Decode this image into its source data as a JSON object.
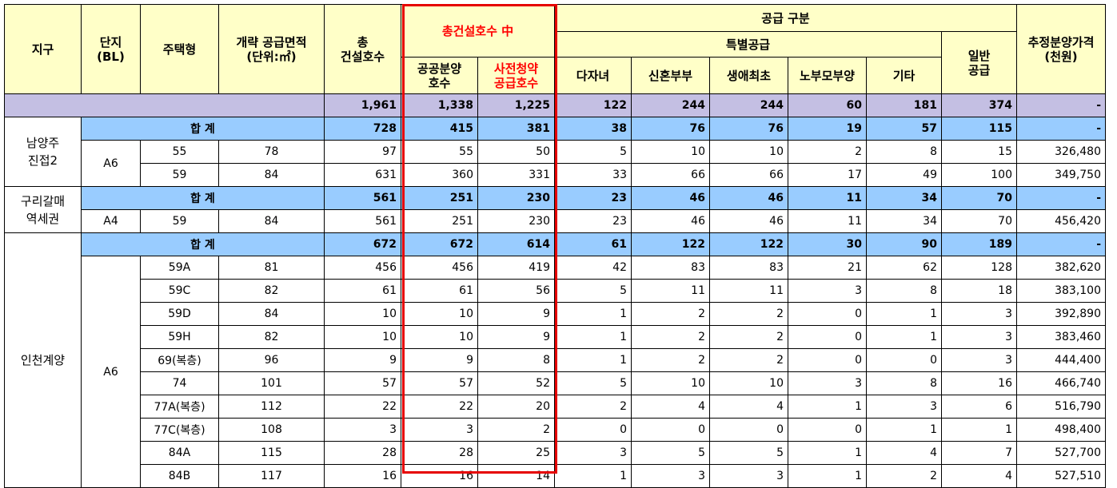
{
  "headers": {
    "district": "지구",
    "block_line1": "단지",
    "block_line2": "(BL)",
    "housing_type": "주택형",
    "area_line1": "개략 공급면적",
    "area_line2": "(단위:㎡)",
    "total_line1": "총",
    "total_line2": "건설호수",
    "among_total": "총건설호수 中",
    "public_sale_line1": "공공분양",
    "public_sale_line2": "호수",
    "pre_sub_line1": "사전청약",
    "pre_sub_line2": "공급호수",
    "supply_division": "공급 구분",
    "special_supply": "특별공급",
    "multi_child": "다자녀",
    "newlywed": "신혼부부",
    "first_home": "생애최초",
    "elderly_parents": "노부모부양",
    "other": "기타",
    "general_line1": "일반",
    "general_line2": "공급",
    "price_line1": "추정분양가격",
    "price_line2": "(천원)"
  },
  "grand_total": {
    "total": "1,961",
    "public": "1,338",
    "presub": "1,225",
    "multi": "122",
    "newlywed": "244",
    "first": "244",
    "elderly": "60",
    "other": "181",
    "general": "374",
    "price": "-"
  },
  "sum_label": "합 계",
  "districts": [
    {
      "name_line1": "남양주",
      "name_line2": "진접2",
      "block": "A6",
      "subtotal": {
        "total": "728",
        "public": "415",
        "presub": "381",
        "multi": "38",
        "newlywed": "76",
        "first": "76",
        "elderly": "19",
        "other": "57",
        "general": "115",
        "price": "-"
      },
      "rows": [
        {
          "type": "55",
          "area": "78",
          "total": "97",
          "public": "55",
          "presub": "50",
          "multi": "5",
          "newlywed": "10",
          "first": "10",
          "elderly": "2",
          "other": "8",
          "general": "15",
          "price": "326,480"
        },
        {
          "type": "59",
          "area": "84",
          "total": "631",
          "public": "360",
          "presub": "331",
          "multi": "33",
          "newlywed": "66",
          "first": "66",
          "elderly": "17",
          "other": "49",
          "general": "100",
          "price": "349,750"
        }
      ]
    },
    {
      "name_line1": "구리갈매",
      "name_line2": "역세권",
      "block": "A4",
      "subtotal": {
        "total": "561",
        "public": "251",
        "presub": "230",
        "multi": "23",
        "newlywed": "46",
        "first": "46",
        "elderly": "11",
        "other": "34",
        "general": "70",
        "price": "-"
      },
      "rows": [
        {
          "type": "59",
          "area": "84",
          "total": "561",
          "public": "251",
          "presub": "230",
          "multi": "23",
          "newlywed": "46",
          "first": "46",
          "elderly": "11",
          "other": "34",
          "general": "70",
          "price": "456,420"
        }
      ]
    },
    {
      "name_line1": "인천계양",
      "name_line2": "",
      "block": "A6",
      "subtotal": {
        "total": "672",
        "public": "672",
        "presub": "614",
        "multi": "61",
        "newlywed": "122",
        "first": "122",
        "elderly": "30",
        "other": "90",
        "general": "189",
        "price": "-"
      },
      "rows": [
        {
          "type": "59A",
          "area": "81",
          "total": "456",
          "public": "456",
          "presub": "419",
          "multi": "42",
          "newlywed": "83",
          "first": "83",
          "elderly": "21",
          "other": "62",
          "general": "128",
          "price": "382,620"
        },
        {
          "type": "59C",
          "area": "82",
          "total": "61",
          "public": "61",
          "presub": "56",
          "multi": "5",
          "newlywed": "11",
          "first": "11",
          "elderly": "3",
          "other": "8",
          "general": "18",
          "price": "383,100"
        },
        {
          "type": "59D",
          "area": "84",
          "total": "10",
          "public": "10",
          "presub": "9",
          "multi": "1",
          "newlywed": "2",
          "first": "2",
          "elderly": "0",
          "other": "1",
          "general": "3",
          "price": "392,890"
        },
        {
          "type": "59H",
          "area": "82",
          "total": "10",
          "public": "10",
          "presub": "9",
          "multi": "1",
          "newlywed": "2",
          "first": "2",
          "elderly": "0",
          "other": "1",
          "general": "3",
          "price": "383,460"
        },
        {
          "type": "69(복층)",
          "area": "96",
          "total": "9",
          "public": "9",
          "presub": "8",
          "multi": "1",
          "newlywed": "2",
          "first": "2",
          "elderly": "0",
          "other": "0",
          "general": "3",
          "price": "444,400"
        },
        {
          "type": "74",
          "area": "101",
          "total": "57",
          "public": "57",
          "presub": "52",
          "multi": "5",
          "newlywed": "10",
          "first": "10",
          "elderly": "3",
          "other": "8",
          "general": "16",
          "price": "466,740"
        },
        {
          "type": "77A(복층)",
          "area": "112",
          "total": "22",
          "public": "22",
          "presub": "20",
          "multi": "2",
          "newlywed": "4",
          "first": "4",
          "elderly": "1",
          "other": "3",
          "general": "6",
          "price": "516,790"
        },
        {
          "type": "77C(복층)",
          "area": "108",
          "total": "3",
          "public": "3",
          "presub": "2",
          "multi": "0",
          "newlywed": "0",
          "first": "0",
          "elderly": "0",
          "other": "1",
          "general": "1",
          "price": "498,400"
        },
        {
          "type": "84A",
          "area": "115",
          "total": "28",
          "public": "28",
          "presub": "25",
          "multi": "3",
          "newlywed": "5",
          "first": "5",
          "elderly": "1",
          "other": "4",
          "general": "7",
          "price": "527,700"
        },
        {
          "type": "84B",
          "area": "117",
          "total": "16",
          "public": "16",
          "presub": "14",
          "multi": "1",
          "newlywed": "3",
          "first": "3",
          "elderly": "1",
          "other": "2",
          "general": "4",
          "price": "527,510"
        }
      ]
    }
  ]
}
